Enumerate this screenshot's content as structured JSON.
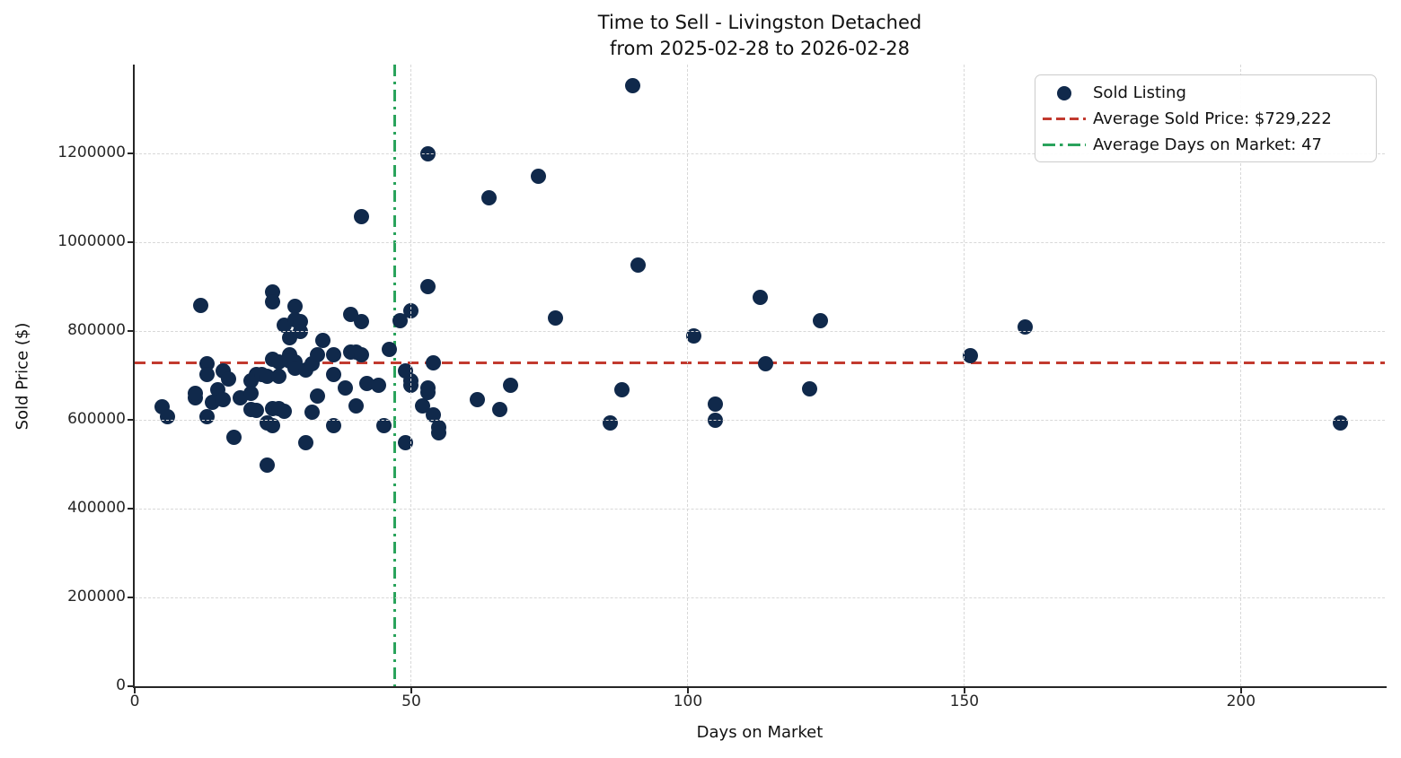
{
  "title": {
    "line1": "Time to Sell - Livingston Detached",
    "line2": "from 2025-02-28 to 2026-02-28"
  },
  "axes": {
    "x_label": "Days on Market",
    "y_label": "Sold Price ($)",
    "x_tick_values": [
      0,
      50,
      100,
      150,
      200
    ],
    "x_tick_labels": [
      "0",
      "50",
      "100",
      "150",
      "200"
    ],
    "y_tick_values": [
      0,
      200000,
      400000,
      600000,
      800000,
      1000000,
      1200000
    ],
    "y_tick_labels": [
      "0",
      "200000",
      "400000",
      "600000",
      "800000",
      "1000000",
      "1200000"
    ]
  },
  "legend": {
    "items": [
      {
        "label": "Sold Listing",
        "marker": "dot"
      },
      {
        "label": "Average Sold Price: $729,222",
        "marker": "dashed-line"
      },
      {
        "label": "Average Days on Market: 47",
        "marker": "dashdot-line"
      }
    ]
  },
  "colors": {
    "point": "#10294b",
    "avg_price_line": "#c23a2f",
    "avg_days_line": "#2aa35c",
    "grid": "#d8d8d8",
    "axis": "#262626",
    "text": "#111111",
    "legend_border": "#cccccc"
  },
  "chart_data": {
    "type": "scatter",
    "title": "Time to Sell - Livingston Detached from 2025-02-28 to 2026-02-28",
    "xlabel": "Days on Market",
    "ylabel": "Sold Price ($)",
    "x_domain": [
      0,
      226
    ],
    "y_domain": [
      0,
      1400000
    ],
    "grid": true,
    "legend_position": "upper right",
    "average_sold_price": 729222,
    "average_days_on_market": 47,
    "series": [
      {
        "name": "Sold Listing",
        "points": [
          [
            5,
            630000
          ],
          [
            6,
            608000
          ],
          [
            11,
            650000
          ],
          [
            11,
            660000
          ],
          [
            12,
            858000
          ],
          [
            13,
            727000
          ],
          [
            13,
            703000
          ],
          [
            13,
            608000
          ],
          [
            14,
            640000
          ],
          [
            15,
            667000
          ],
          [
            16,
            646000
          ],
          [
            16,
            711000
          ],
          [
            17,
            691000
          ],
          [
            18,
            560000
          ],
          [
            19,
            650000
          ],
          [
            21,
            687000
          ],
          [
            21,
            660000
          ],
          [
            21,
            624000
          ],
          [
            22,
            622000
          ],
          [
            22,
            703000
          ],
          [
            23,
            703000
          ],
          [
            24,
            697000
          ],
          [
            24,
            592000
          ],
          [
            24,
            497000
          ],
          [
            25,
            586000
          ],
          [
            25,
            626000
          ],
          [
            25,
            737000
          ],
          [
            25,
            888000
          ],
          [
            25,
            865000
          ],
          [
            26,
            731000
          ],
          [
            26,
            697000
          ],
          [
            26,
            626000
          ],
          [
            27,
            620000
          ],
          [
            27,
            814000
          ],
          [
            28,
            784000
          ],
          [
            28,
            747000
          ],
          [
            28,
            733000
          ],
          [
            29,
            731000
          ],
          [
            29,
            855000
          ],
          [
            29,
            826000
          ],
          [
            30,
            822000
          ],
          [
            30,
            798000
          ],
          [
            29,
            717000
          ],
          [
            31,
            713000
          ],
          [
            32,
            727000
          ],
          [
            31,
            549000
          ],
          [
            32,
            618000
          ],
          [
            33,
            654000
          ],
          [
            33,
            747000
          ],
          [
            34,
            778000
          ],
          [
            36,
            747000
          ],
          [
            36,
            703000
          ],
          [
            36,
            586000
          ],
          [
            38,
            671000
          ],
          [
            39,
            753000
          ],
          [
            40,
            753000
          ],
          [
            41,
            747000
          ],
          [
            39,
            838000
          ],
          [
            41,
            822000
          ],
          [
            40,
            632000
          ],
          [
            41,
            1058000
          ],
          [
            42,
            681000
          ],
          [
            44,
            677000
          ],
          [
            45,
            586000
          ],
          [
            46,
            758000
          ],
          [
            48,
            824000
          ],
          [
            50,
            846000
          ],
          [
            49,
            711000
          ],
          [
            50,
            687000
          ],
          [
            50,
            677000
          ],
          [
            49,
            549000
          ],
          [
            52,
            631000
          ],
          [
            53,
            662000
          ],
          [
            53,
            671000
          ],
          [
            54,
            729000
          ],
          [
            54,
            611000
          ],
          [
            55,
            582000
          ],
          [
            55,
            570000
          ],
          [
            53,
            901000
          ],
          [
            53,
            1198000
          ],
          [
            62,
            646000
          ],
          [
            64,
            1101000
          ],
          [
            66,
            624000
          ],
          [
            68,
            677000
          ],
          [
            73,
            1149000
          ],
          [
            76,
            830000
          ],
          [
            86,
            592000
          ],
          [
            88,
            668000
          ],
          [
            90,
            1353000
          ],
          [
            91,
            949000
          ],
          [
            101,
            788000
          ],
          [
            105,
            635000
          ],
          [
            105,
            600000
          ],
          [
            113,
            875000
          ],
          [
            114,
            727000
          ],
          [
            122,
            670000
          ],
          [
            124,
            824000
          ],
          [
            151,
            744000
          ],
          [
            161,
            810000
          ],
          [
            218,
            592000
          ]
        ]
      }
    ]
  }
}
